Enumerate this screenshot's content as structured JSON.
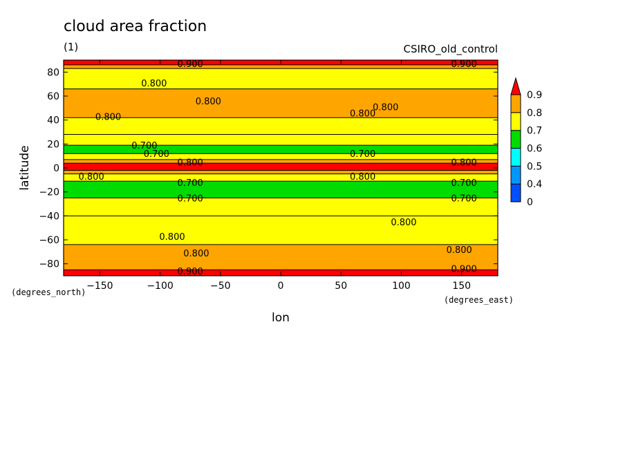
{
  "chart_data": {
    "type": "heatmap",
    "title": "cloud area fraction",
    "subtitle": "(1)",
    "model": "CSIRO_old_control",
    "xlabel": "lon",
    "ylabel": "latitude",
    "x_units": "(degrees_east)",
    "y_units": "(degrees_north)",
    "xlim": [
      -180,
      180
    ],
    "ylim": [
      -90,
      90
    ],
    "x_ticks": [
      -150,
      -100,
      -50,
      0,
      50,
      100,
      150
    ],
    "y_ticks": [
      -80,
      -60,
      -40,
      -20,
      0,
      20,
      40,
      60,
      80
    ],
    "colorbar": {
      "levels": [
        0,
        0.4,
        0.5,
        0.6,
        0.7,
        0.8,
        0.9
      ],
      "level_labels": [
        "0",
        "0.4",
        "0.5",
        "0.6",
        "0.7",
        "0.8",
        "0.9"
      ],
      "colors": [
        "#0050ff",
        "#0096ff",
        "#00ffff",
        "#00dc00",
        "#ffff00",
        "#ffa500",
        "#ff0000"
      ]
    },
    "bands": [
      {
        "lat_min": -90,
        "lat_max": -85,
        "value": 0.9
      },
      {
        "lat_min": -85,
        "lat_max": -64,
        "value": 0.8
      },
      {
        "lat_min": -64,
        "lat_max": -40,
        "value": 0.75
      },
      {
        "lat_min": -40,
        "lat_max": -25,
        "value": 0.75
      },
      {
        "lat_min": -25,
        "lat_max": -11,
        "value": 0.65
      },
      {
        "lat_min": -11,
        "lat_max": -5,
        "value": 0.75
      },
      {
        "lat_min": -5,
        "lat_max": -2,
        "value": 0.85
      },
      {
        "lat_min": -2,
        "lat_max": 4,
        "value": 0.9
      },
      {
        "lat_min": 4,
        "lat_max": 7,
        "value": 0.85
      },
      {
        "lat_min": 7,
        "lat_max": 12,
        "value": 0.75
      },
      {
        "lat_min": 12,
        "lat_max": 19,
        "value": 0.65
      },
      {
        "lat_min": 19,
        "lat_max": 28,
        "value": 0.75
      },
      {
        "lat_min": 28,
        "lat_max": 42,
        "value": 0.75
      },
      {
        "lat_min": 42,
        "lat_max": 66,
        "value": 0.85
      },
      {
        "lat_min": 66,
        "lat_max": 83,
        "value": 0.75
      },
      {
        "lat_min": 83,
        "lat_max": 86,
        "value": 0.85
      },
      {
        "lat_min": 86,
        "lat_max": 90,
        "value": 0.9
      }
    ],
    "contour_labels": [
      {
        "text": "0.900",
        "lon": -75,
        "lat": 87
      },
      {
        "text": "0.900",
        "lon": 152,
        "lat": 87
      },
      {
        "text": "0.800",
        "lon": -105,
        "lat": 71
      },
      {
        "text": "0.800",
        "lon": -60,
        "lat": 56
      },
      {
        "text": "0.800",
        "lon": 87,
        "lat": 51
      },
      {
        "text": "0.800",
        "lon": 68,
        "lat": 46
      },
      {
        "text": "0.800",
        "lon": -143,
        "lat": 43
      },
      {
        "text": "0.700",
        "lon": -113,
        "lat": 19
      },
      {
        "text": "0.700",
        "lon": -103,
        "lat": 12
      },
      {
        "text": "0.700",
        "lon": 68,
        "lat": 12
      },
      {
        "text": "0.800",
        "lon": -75,
        "lat": 5
      },
      {
        "text": "0.800",
        "lon": 152,
        "lat": 5
      },
      {
        "text": "0.800",
        "lon": -157,
        "lat": -7
      },
      {
        "text": "0.800",
        "lon": 68,
        "lat": -7
      },
      {
        "text": "0.700",
        "lon": -75,
        "lat": -12
      },
      {
        "text": "0.700",
        "lon": 152,
        "lat": -12
      },
      {
        "text": "0.700",
        "lon": -75,
        "lat": -25
      },
      {
        "text": "0.700",
        "lon": 152,
        "lat": -25
      },
      {
        "text": "0.800",
        "lon": 102,
        "lat": -45
      },
      {
        "text": "0.800",
        "lon": -90,
        "lat": -57
      },
      {
        "text": "0.800",
        "lon": -70,
        "lat": -71
      },
      {
        "text": "0.800",
        "lon": 148,
        "lat": -68
      },
      {
        "text": "0.900",
        "lon": -75,
        "lat": -86
      },
      {
        "text": "0.900",
        "lon": 152,
        "lat": -84
      }
    ]
  }
}
